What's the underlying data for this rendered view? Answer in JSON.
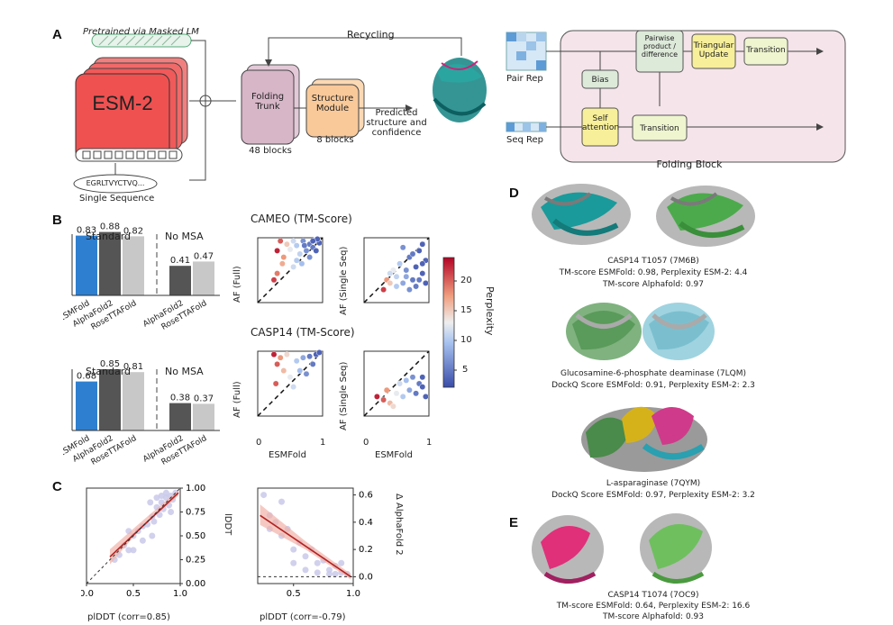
{
  "panel_labels": {
    "a": "A",
    "b": "B",
    "c": "C",
    "d": "D",
    "e": "E"
  },
  "panel_a": {
    "pretrained": "Pretrained via Masked LM",
    "esm": "ESM-2",
    "sequence": "EGRLTVYCTVQ...",
    "single_sequence": "Single Sequence",
    "recycling": "Recycling",
    "folding_trunk": "Folding Trunk",
    "blocks48": "48 blocks",
    "structure_module": "Structure Module",
    "blocks8": "8 blocks",
    "predicted": "Predicted structure and confidence",
    "pair_rep": "Pair Rep",
    "seq_rep": "Seq Rep",
    "bias": "Bias",
    "self_attention": "Self attention",
    "transition": "Transition",
    "pairwise": "Pairwise product / difference",
    "triangular": "Triangular Update",
    "folding_block": "Folding Block"
  },
  "panel_b": {
    "standard": "Standard",
    "no_msa": "No MSA",
    "cameo_title": "CAMEO (TM-Score)",
    "casp_title": "CASP14 (TM-Score)",
    "af_full": "AF (Full)",
    "af_single": "AF (Single Seq)",
    "esmfold_axis": "ESMFold",
    "perplexity": "Perplexity",
    "tick0": "0",
    "tick1": "1",
    "cb_ticks": [
      "20",
      "15",
      "10",
      "5"
    ]
  },
  "panel_c": {
    "left_xlabel": "plDDT (corr=0.85)",
    "left_ylabel": "lDDT",
    "right_xlabel": "plDDT (corr=-0.79)",
    "right_ylabel": "Δ AlphaFold 2",
    "left_xticks": [
      "0.0",
      "0.5",
      "1.0"
    ],
    "left_yticks": [
      "1.00",
      "0.75",
      "0.50",
      "0.25",
      "0.00"
    ],
    "right_xticks": [
      "0.5",
      "1.0"
    ],
    "right_yticks": [
      "0.6",
      "0.4",
      "0.2",
      "0.0"
    ]
  },
  "panel_d": {
    "cap1_l1": "CASP14 T1057 (7M6B)",
    "cap1_l2": "TM-score ESMFold: 0.98, Perplexity ESM-2: 4.4",
    "cap1_l3": "TM-score Alphafold: 0.97",
    "cap2_l1": "Glucosamine-6-phosphate deaminase (7LQM)",
    "cap2_l2": "DockQ Score ESMFold: 0.91, Perplexity ESM-2: 2.3",
    "cap3_l1": "L-asparaginase (7QYM)",
    "cap3_l2": "DockQ Score ESMFold: 0.97, Perplexity ESM-2: 3.2"
  },
  "panel_e": {
    "cap_l1": "CASP14 T1074 (7OC9)",
    "cap_l2": "TM-score ESMFold: 0.64, Perplexity ESM-2: 16.6",
    "cap_l3": "TM-score Alphafold: 0.93"
  },
  "colors": {
    "esmfold": "#2f7fd0",
    "alphafold2": "#555555",
    "rosetta": "#c8c8c8",
    "esm_red": "#f05a5a",
    "trunk": "#d7b6c8",
    "module": "#f9c99a",
    "block_bg": "#f5e4ea",
    "green_box": "#eef5cf"
  },
  "chart_data": [
    {
      "type": "bar",
      "title": "",
      "categories": [
        "ESMFold",
        "AlphaFold2",
        "RoseTTAFold",
        "AlphaFold2",
        "RoseTTAFold"
      ],
      "groups": [
        "Standard",
        "Standard",
        "Standard",
        "No MSA",
        "No MSA"
      ],
      "values": [
        0.83,
        0.88,
        0.82,
        0.41,
        0.47
      ],
      "labels": [
        "0.83",
        "0.88",
        "0.82",
        "0.41",
        "0.47"
      ]
    },
    {
      "type": "bar",
      "title": "",
      "categories": [
        "ESMFold",
        "AlphaFold2",
        "RoseTTAFold",
        "AlphaFold2",
        "RoseTTAFold"
      ],
      "groups": [
        "Standard",
        "Standard",
        "Standard",
        "No MSA",
        "No MSA"
      ],
      "values": [
        0.68,
        0.85,
        0.81,
        0.38,
        0.37
      ],
      "labels": [
        "0.68",
        "0.85",
        "0.81",
        "0.38",
        "0.37"
      ]
    },
    {
      "type": "scatter",
      "title": "CAMEO (TM-Score)",
      "xlabel": "ESMFold",
      "ylabel": "AF (Full)",
      "xlim": [
        0,
        1
      ],
      "ylim": [
        0,
        1
      ],
      "points": [
        [
          0.35,
          0.95,
          20
        ],
        [
          0.45,
          0.9,
          15
        ],
        [
          0.55,
          0.95,
          10
        ],
        [
          0.6,
          0.88,
          8
        ],
        [
          0.7,
          0.95,
          5
        ],
        [
          0.8,
          0.9,
          4
        ],
        [
          0.88,
          0.96,
          6
        ],
        [
          0.95,
          0.92,
          3
        ],
        [
          0.3,
          0.8,
          22
        ],
        [
          0.4,
          0.7,
          18
        ],
        [
          0.5,
          0.82,
          12
        ],
        [
          0.65,
          0.75,
          9
        ],
        [
          0.75,
          0.8,
          5
        ],
        [
          0.85,
          0.85,
          4
        ],
        [
          0.92,
          0.98,
          3
        ],
        [
          0.38,
          0.6,
          17
        ],
        [
          0.6,
          0.65,
          8
        ],
        [
          0.8,
          0.7,
          5
        ],
        [
          0.72,
          0.88,
          4
        ],
        [
          0.9,
          0.8,
          3
        ],
        [
          0.25,
          0.35,
          21
        ],
        [
          0.3,
          0.45,
          19
        ],
        [
          0.55,
          0.55,
          10
        ],
        [
          0.68,
          0.6,
          7
        ],
        [
          0.85,
          0.95,
          3
        ]
      ]
    },
    {
      "type": "scatter",
      "title": "CAMEO (TM-Score)",
      "xlabel": "",
      "ylabel": "AF (Single Seq)",
      "xlim": [
        0,
        1
      ],
      "ylim": [
        0,
        1
      ],
      "points": [
        [
          0.3,
          0.2,
          21
        ],
        [
          0.35,
          0.35,
          18
        ],
        [
          0.4,
          0.3,
          15
        ],
        [
          0.45,
          0.5,
          12
        ],
        [
          0.5,
          0.4,
          9
        ],
        [
          0.55,
          0.6,
          8
        ],
        [
          0.6,
          0.3,
          6
        ],
        [
          0.65,
          0.5,
          5
        ],
        [
          0.7,
          0.7,
          4
        ],
        [
          0.75,
          0.35,
          4
        ],
        [
          0.8,
          0.55,
          3
        ],
        [
          0.85,
          0.8,
          3
        ],
        [
          0.9,
          0.45,
          3
        ],
        [
          0.95,
          0.65,
          3
        ],
        [
          0.6,
          0.85,
          5
        ],
        [
          0.7,
          0.2,
          5
        ],
        [
          0.8,
          0.25,
          4
        ],
        [
          0.9,
          0.9,
          3
        ],
        [
          0.5,
          0.25,
          8
        ],
        [
          0.4,
          0.45,
          10
        ],
        [
          0.85,
          0.35,
          4
        ],
        [
          0.75,
          0.75,
          4
        ],
        [
          0.65,
          0.4,
          6
        ],
        [
          0.95,
          0.3,
          3
        ],
        [
          0.9,
          0.6,
          3
        ]
      ]
    },
    {
      "type": "scatter",
      "title": "CASP14 (TM-Score)",
      "xlabel": "ESMFold",
      "ylabel": "AF (Full)",
      "xlim": [
        0,
        1
      ],
      "ylim": [
        0,
        1
      ],
      "points": [
        [
          0.25,
          0.95,
          22
        ],
        [
          0.3,
          0.8,
          20
        ],
        [
          0.35,
          0.9,
          18
        ],
        [
          0.4,
          0.7,
          16
        ],
        [
          0.45,
          0.95,
          14
        ],
        [
          0.5,
          0.6,
          12
        ],
        [
          0.6,
          0.85,
          8
        ],
        [
          0.7,
          0.9,
          6
        ],
        [
          0.8,
          0.92,
          4
        ],
        [
          0.85,
          0.8,
          4
        ],
        [
          0.9,
          0.95,
          3
        ],
        [
          0.28,
          0.5,
          20
        ],
        [
          0.55,
          0.45,
          10
        ],
        [
          0.65,
          0.7,
          7
        ],
        [
          0.75,
          0.65,
          5
        ],
        [
          0.95,
          0.98,
          3
        ]
      ]
    },
    {
      "type": "scatter",
      "title": "CASP14 (TM-Score)",
      "xlabel": "ESMFold",
      "ylabel": "AF (Single Seq)",
      "xlim": [
        0,
        1
      ],
      "ylim": [
        0,
        1
      ],
      "points": [
        [
          0.2,
          0.3,
          22
        ],
        [
          0.3,
          0.25,
          20
        ],
        [
          0.35,
          0.4,
          18
        ],
        [
          0.4,
          0.2,
          16
        ],
        [
          0.5,
          0.35,
          12
        ],
        [
          0.55,
          0.5,
          10
        ],
        [
          0.6,
          0.3,
          8
        ],
        [
          0.7,
          0.4,
          6
        ],
        [
          0.75,
          0.6,
          5
        ],
        [
          0.8,
          0.35,
          4
        ],
        [
          0.85,
          0.5,
          4
        ],
        [
          0.9,
          0.45,
          3
        ],
        [
          0.95,
          0.3,
          3
        ],
        [
          0.65,
          0.55,
          7
        ],
        [
          0.45,
          0.15,
          14
        ],
        [
          0.9,
          0.6,
          3
        ]
      ]
    },
    {
      "type": "scatter",
      "title": "",
      "xlabel": "plDDT (corr=0.85)",
      "ylabel": "lDDT",
      "xlim": [
        0,
        1
      ],
      "ylim": [
        0,
        1
      ],
      "points": [
        [
          0.3,
          0.25
        ],
        [
          0.35,
          0.3
        ],
        [
          0.4,
          0.4
        ],
        [
          0.45,
          0.35
        ],
        [
          0.5,
          0.5
        ],
        [
          0.55,
          0.55
        ],
        [
          0.6,
          0.6
        ],
        [
          0.65,
          0.62
        ],
        [
          0.7,
          0.7
        ],
        [
          0.72,
          0.65
        ],
        [
          0.75,
          0.8
        ],
        [
          0.78,
          0.72
        ],
        [
          0.8,
          0.85
        ],
        [
          0.82,
          0.78
        ],
        [
          0.85,
          0.9
        ],
        [
          0.88,
          0.82
        ],
        [
          0.9,
          0.92
        ],
        [
          0.92,
          0.88
        ],
        [
          0.85,
          0.95
        ],
        [
          0.8,
          0.92
        ],
        [
          0.75,
          0.9
        ],
        [
          0.68,
          0.85
        ],
        [
          0.6,
          0.45
        ],
        [
          0.5,
          0.35
        ],
        [
          0.45,
          0.55
        ],
        [
          0.95,
          0.95
        ],
        [
          0.9,
          0.75
        ],
        [
          0.7,
          0.5
        ]
      ]
    },
    {
      "type": "scatter",
      "title": "",
      "xlabel": "plDDT (corr=-0.79)",
      "ylabel": "Δ AlphaFold 2",
      "xlim": [
        0.2,
        1
      ],
      "ylim": [
        -0.05,
        0.65
      ],
      "points": [
        [
          0.25,
          0.6
        ],
        [
          0.3,
          0.45
        ],
        [
          0.35,
          0.4
        ],
        [
          0.4,
          0.3
        ],
        [
          0.45,
          0.35
        ],
        [
          0.5,
          0.2
        ],
        [
          0.55,
          0.25
        ],
        [
          0.6,
          0.15
        ],
        [
          0.65,
          0.2
        ],
        [
          0.7,
          0.1
        ],
        [
          0.75,
          0.12
        ],
        [
          0.8,
          0.05
        ],
        [
          0.85,
          0.08
        ],
        [
          0.9,
          0.03
        ],
        [
          0.95,
          0.02
        ],
        [
          0.6,
          0.05
        ],
        [
          0.7,
          0.03
        ],
        [
          0.8,
          0.02
        ],
        [
          0.5,
          0.1
        ],
        [
          0.4,
          0.55
        ],
        [
          0.3,
          0.35
        ],
        [
          0.9,
          0.1
        ],
        [
          0.85,
          0.02
        ]
      ]
    }
  ]
}
